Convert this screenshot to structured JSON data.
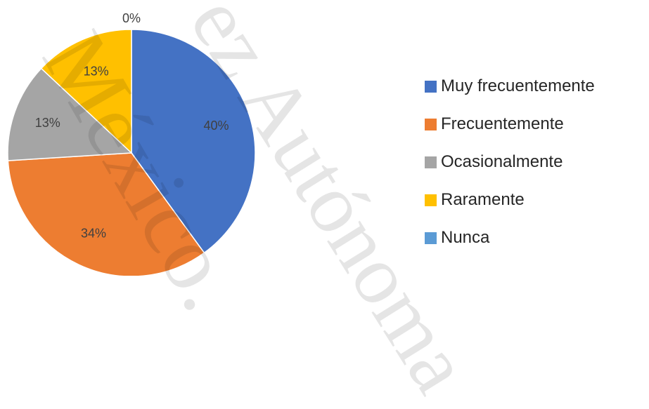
{
  "chart_data": {
    "type": "pie",
    "categories": [
      "Muy frecuentemente",
      "Frecuentemente",
      "Ocasionalmente",
      "Raramente",
      "Nunca"
    ],
    "values": [
      40,
      34,
      13,
      13,
      0
    ],
    "labels": [
      "40%",
      "34%",
      "13%",
      "13%",
      "0%"
    ],
    "colors": [
      "#4472C4",
      "#ED7D31",
      "#A5A5A5",
      "#FFC000",
      "#5B9BD5"
    ],
    "legend_position": "right",
    "title": ""
  },
  "watermark": {
    "line1": "México.",
    "line2": "ez Autónoma"
  }
}
